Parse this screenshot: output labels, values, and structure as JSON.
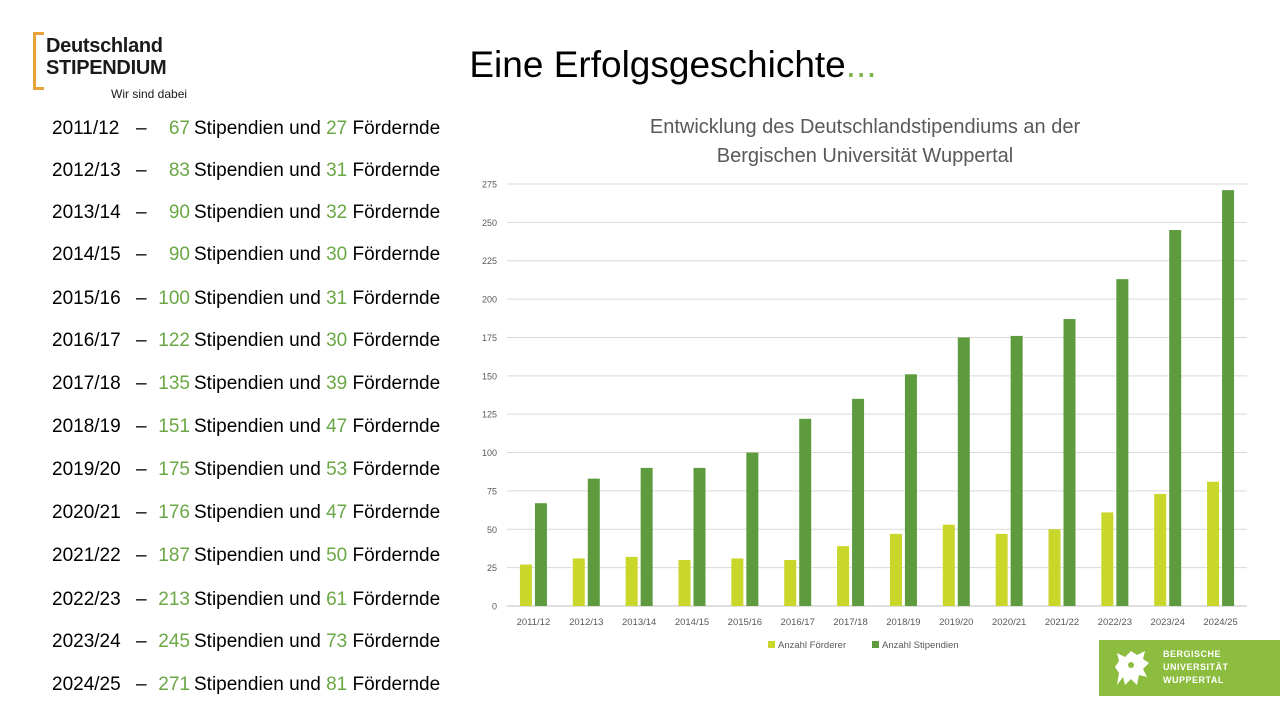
{
  "logo": {
    "line1": "Deutschland",
    "line2": "STIPENDIUM",
    "tagline": "Wir sind dabei"
  },
  "title": {
    "text": "Eine Erfolgsgeschichte",
    "dots": "..."
  },
  "list": {
    "stip_word": "Stipendien und",
    "foerd_word": "Fördernde",
    "dash": "–",
    "rows": [
      {
        "year": "2011/12",
        "stipendien": "67",
        "foerdernde": "27"
      },
      {
        "year": "2012/13",
        "stipendien": "83",
        "foerdernde": "31"
      },
      {
        "year": "2013/14",
        "stipendien": "90",
        "foerdernde": "32"
      },
      {
        "year": "2014/15",
        "stipendien": "90",
        "foerdernde": "30"
      },
      {
        "year": "2015/16",
        "stipendien": "100",
        "foerdernde": "31"
      },
      {
        "year": "2016/17",
        "stipendien": "122",
        "foerdernde": "30"
      },
      {
        "year": "2017/18",
        "stipendien": "135",
        "foerdernde": "39"
      },
      {
        "year": "2018/19",
        "stipendien": "151",
        "foerdernde": "47"
      },
      {
        "year": "2019/20",
        "stipendien": "175",
        "foerdernde": "53"
      },
      {
        "year": "2020/21",
        "stipendien": "176",
        "foerdernde": "47"
      },
      {
        "year": "2021/22",
        "stipendien": "187",
        "foerdernde": "50"
      },
      {
        "year": "2022/23",
        "stipendien": "213",
        "foerdernde": "61"
      },
      {
        "year": "2023/24",
        "stipendien": "245",
        "foerdernde": "73"
      },
      {
        "year": "2024/25",
        "stipendien": "271",
        "foerdernde": "81"
      }
    ]
  },
  "chart_data": {
    "type": "bar",
    "title": "Entwicklung des Deutschlandstipendiums an der Bergischen Universität Wuppertal",
    "title_line1": "Entwicklung des Deutschlandstipendiums an der",
    "title_line2": "Bergischen Universität Wuppertal",
    "categories": [
      "2011/12",
      "2012/13",
      "2013/14",
      "2014/15",
      "2015/16",
      "2016/17",
      "2017/18",
      "2018/19",
      "2019/20",
      "2020/21",
      "2021/22",
      "2022/23",
      "2023/24",
      "2024/25"
    ],
    "series": [
      {
        "name": "Anzahl Förderer",
        "color": "#c9d62a",
        "values": [
          27,
          31,
          32,
          30,
          31,
          30,
          39,
          47,
          53,
          47,
          50,
          61,
          73,
          81
        ]
      },
      {
        "name": "Anzahl Stipendien",
        "color": "#5e9b3e",
        "values": [
          67,
          83,
          90,
          90,
          100,
          122,
          135,
          151,
          175,
          176,
          187,
          213,
          245,
          271
        ]
      }
    ],
    "ylim": [
      0,
      275
    ],
    "yticks": [
      0,
      25,
      50,
      75,
      100,
      125,
      150,
      175,
      200,
      225,
      250,
      275
    ],
    "grid": true,
    "legend": "bottom",
    "xlabel": "",
    "ylabel": ""
  },
  "uni_logo": {
    "line1": "BERGISCHE",
    "line2": "UNIVERSITÄT",
    "line3": "WUPPERTAL"
  },
  "colors": {
    "accent_green": "#6aa745",
    "logo_orange": "#e8a33d",
    "uni_green": "#8cbd3f"
  }
}
